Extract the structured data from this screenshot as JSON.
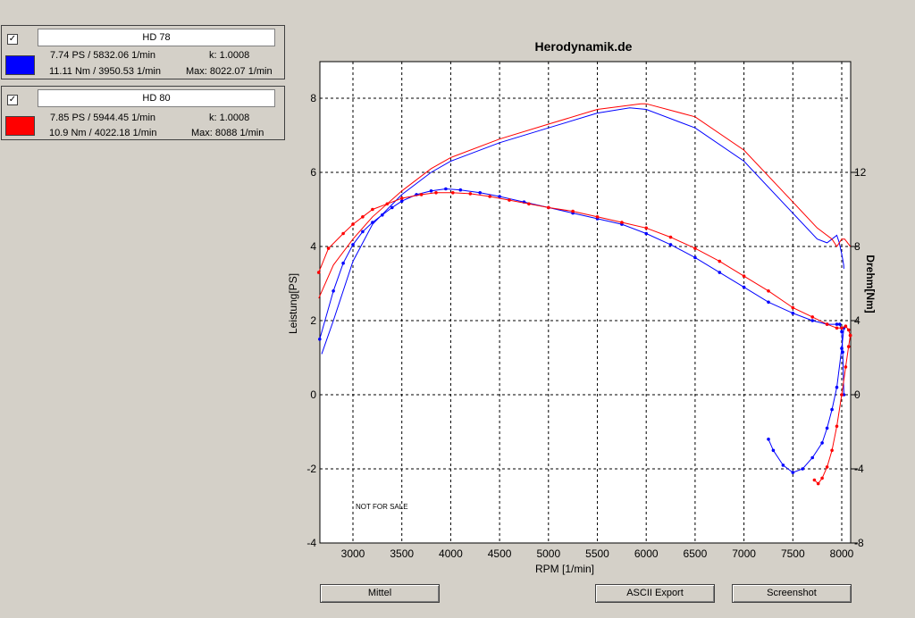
{
  "legend": [
    {
      "checked": "✓",
      "name": "HD 78",
      "color": "#0000ff",
      "power": "7.74 PS / 5832.06 1/min",
      "k": "k: 1.0008",
      "torque": "11.11 Nm / 3950.53 1/min",
      "max": "Max: 8022.07 1/min"
    },
    {
      "checked": "✓",
      "name": "HD 80",
      "color": "#ff0000",
      "power": "7.85 PS / 5944.45 1/min",
      "k": "k: 1.0008",
      "torque": "10.9 Nm / 4022.18 1/min",
      "max": "Max: 8088 1/min"
    }
  ],
  "buttons": {
    "mittel": "Mittel",
    "ascii": "ASCII Export",
    "screenshot": "Screenshot"
  },
  "chart_data": {
    "type": "line",
    "title": "Herodynamik.de",
    "xlabel": "RPM [1/min]",
    "ylabel": "Leistung[PS]",
    "y2label": "Drehm[Nm]",
    "watermark": "NOT FOR SALE",
    "xlim": [
      2650,
      8100
    ],
    "ylim": [
      -4,
      9
    ],
    "y2lim": [
      -8,
      18
    ],
    "xticks": [
      3000,
      3500,
      4000,
      4500,
      5000,
      5500,
      6000,
      6500,
      7000,
      7500,
      8000
    ],
    "yticks": [
      -4,
      -2,
      0,
      2,
      4,
      6,
      8
    ],
    "y2ticks": [
      -8,
      -4,
      0,
      4,
      8,
      12
    ],
    "grid": true,
    "series": [
      {
        "name": "HD 78",
        "quantity": "power",
        "axis": "left",
        "color": "#0000ff",
        "x": [
          2680,
          2800,
          3000,
          3200,
          3500,
          3800,
          4000,
          4500,
          5000,
          5500,
          5832,
          6000,
          6500,
          7000,
          7500,
          7750,
          7850,
          7900,
          7950,
          7975,
          8000,
          8020,
          8022
        ],
        "y": [
          1.1,
          2.0,
          3.6,
          4.6,
          5.4,
          6.0,
          6.3,
          6.8,
          7.2,
          7.6,
          7.74,
          7.7,
          7.2,
          6.3,
          4.9,
          4.2,
          4.1,
          4.2,
          4.3,
          4.1,
          3.8,
          3.5,
          3.4
        ]
      },
      {
        "name": "HD 80",
        "quantity": "power",
        "axis": "left",
        "color": "#ff0000",
        "x": [
          2650,
          2800,
          3000,
          3200,
          3500,
          3800,
          4000,
          4500,
          5000,
          5500,
          5944,
          6000,
          6500,
          7000,
          7500,
          7750,
          7900,
          7950,
          8000,
          8030,
          8060,
          8088
        ],
        "y": [
          2.6,
          3.5,
          4.2,
          4.8,
          5.5,
          6.1,
          6.4,
          6.9,
          7.3,
          7.7,
          7.85,
          7.85,
          7.5,
          6.6,
          5.2,
          4.5,
          4.2,
          4.0,
          4.2,
          4.2,
          4.1,
          4.0
        ]
      },
      {
        "name": "HD 78",
        "quantity": "torque",
        "axis": "right",
        "color": "#0000ff",
        "x": [
          2660,
          2800,
          2900,
          3000,
          3100,
          3200,
          3300,
          3400,
          3500,
          3650,
          3800,
          3950,
          4100,
          4300,
          4500,
          4750,
          5000,
          5250,
          5500,
          5750,
          6000,
          6250,
          6500,
          6750,
          7000,
          7250,
          7500,
          7700,
          7850,
          7950,
          7980,
          8000,
          8010,
          8022
        ],
        "y": [
          3.0,
          5.6,
          7.1,
          8.1,
          8.8,
          9.3,
          9.7,
          10.1,
          10.45,
          10.8,
          11.0,
          11.11,
          11.05,
          10.9,
          10.7,
          10.4,
          10.1,
          9.8,
          9.5,
          9.2,
          8.7,
          8.1,
          7.4,
          6.6,
          5.8,
          5.0,
          4.4,
          4.0,
          3.8,
          3.8,
          3.8,
          3.4,
          2.3,
          0.0
        ]
      },
      {
        "name": "HD 78",
        "quantity": "torque",
        "axis": "right",
        "color": "#0000ff",
        "part": "tail",
        "x": [
          7250,
          7300,
          7400,
          7500,
          7600,
          7700,
          7800,
          7850,
          7900,
          7950,
          8000,
          8022
        ],
        "y": [
          -2.4,
          -3.0,
          -3.8,
          -4.2,
          -4.0,
          -3.4,
          -2.6,
          -1.8,
          -0.8,
          0.4,
          2.5,
          3.6
        ]
      },
      {
        "name": "HD 80",
        "quantity": "torque",
        "axis": "right",
        "color": "#ff0000",
        "x": [
          2650,
          2750,
          2900,
          3000,
          3100,
          3200,
          3350,
          3500,
          3700,
          3850,
          4022,
          4200,
          4400,
          4600,
          4800,
          5000,
          5250,
          5500,
          5750,
          6000,
          6250,
          6500,
          6750,
          7000,
          7250,
          7500,
          7700,
          7850,
          7950,
          8000,
          8040,
          8070,
          8088
        ],
        "y": [
          6.6,
          7.9,
          8.7,
          9.2,
          9.6,
          10.0,
          10.3,
          10.6,
          10.8,
          10.9,
          10.9,
          10.85,
          10.7,
          10.5,
          10.3,
          10.1,
          9.9,
          9.6,
          9.3,
          9.0,
          8.5,
          7.9,
          7.2,
          6.4,
          5.6,
          4.7,
          4.2,
          3.8,
          3.6,
          3.6,
          3.7,
          3.5,
          3.2
        ]
      },
      {
        "name": "HD 80",
        "quantity": "torque",
        "axis": "right",
        "color": "#ff0000",
        "part": "tail",
        "x": [
          7720,
          7760,
          7800,
          7850,
          7900,
          7950,
          8000,
          8040,
          8070,
          8088
        ],
        "y": [
          -4.6,
          -4.8,
          -4.5,
          -3.9,
          -3.0,
          -1.7,
          0.0,
          1.5,
          2.6,
          3.2
        ]
      }
    ]
  }
}
